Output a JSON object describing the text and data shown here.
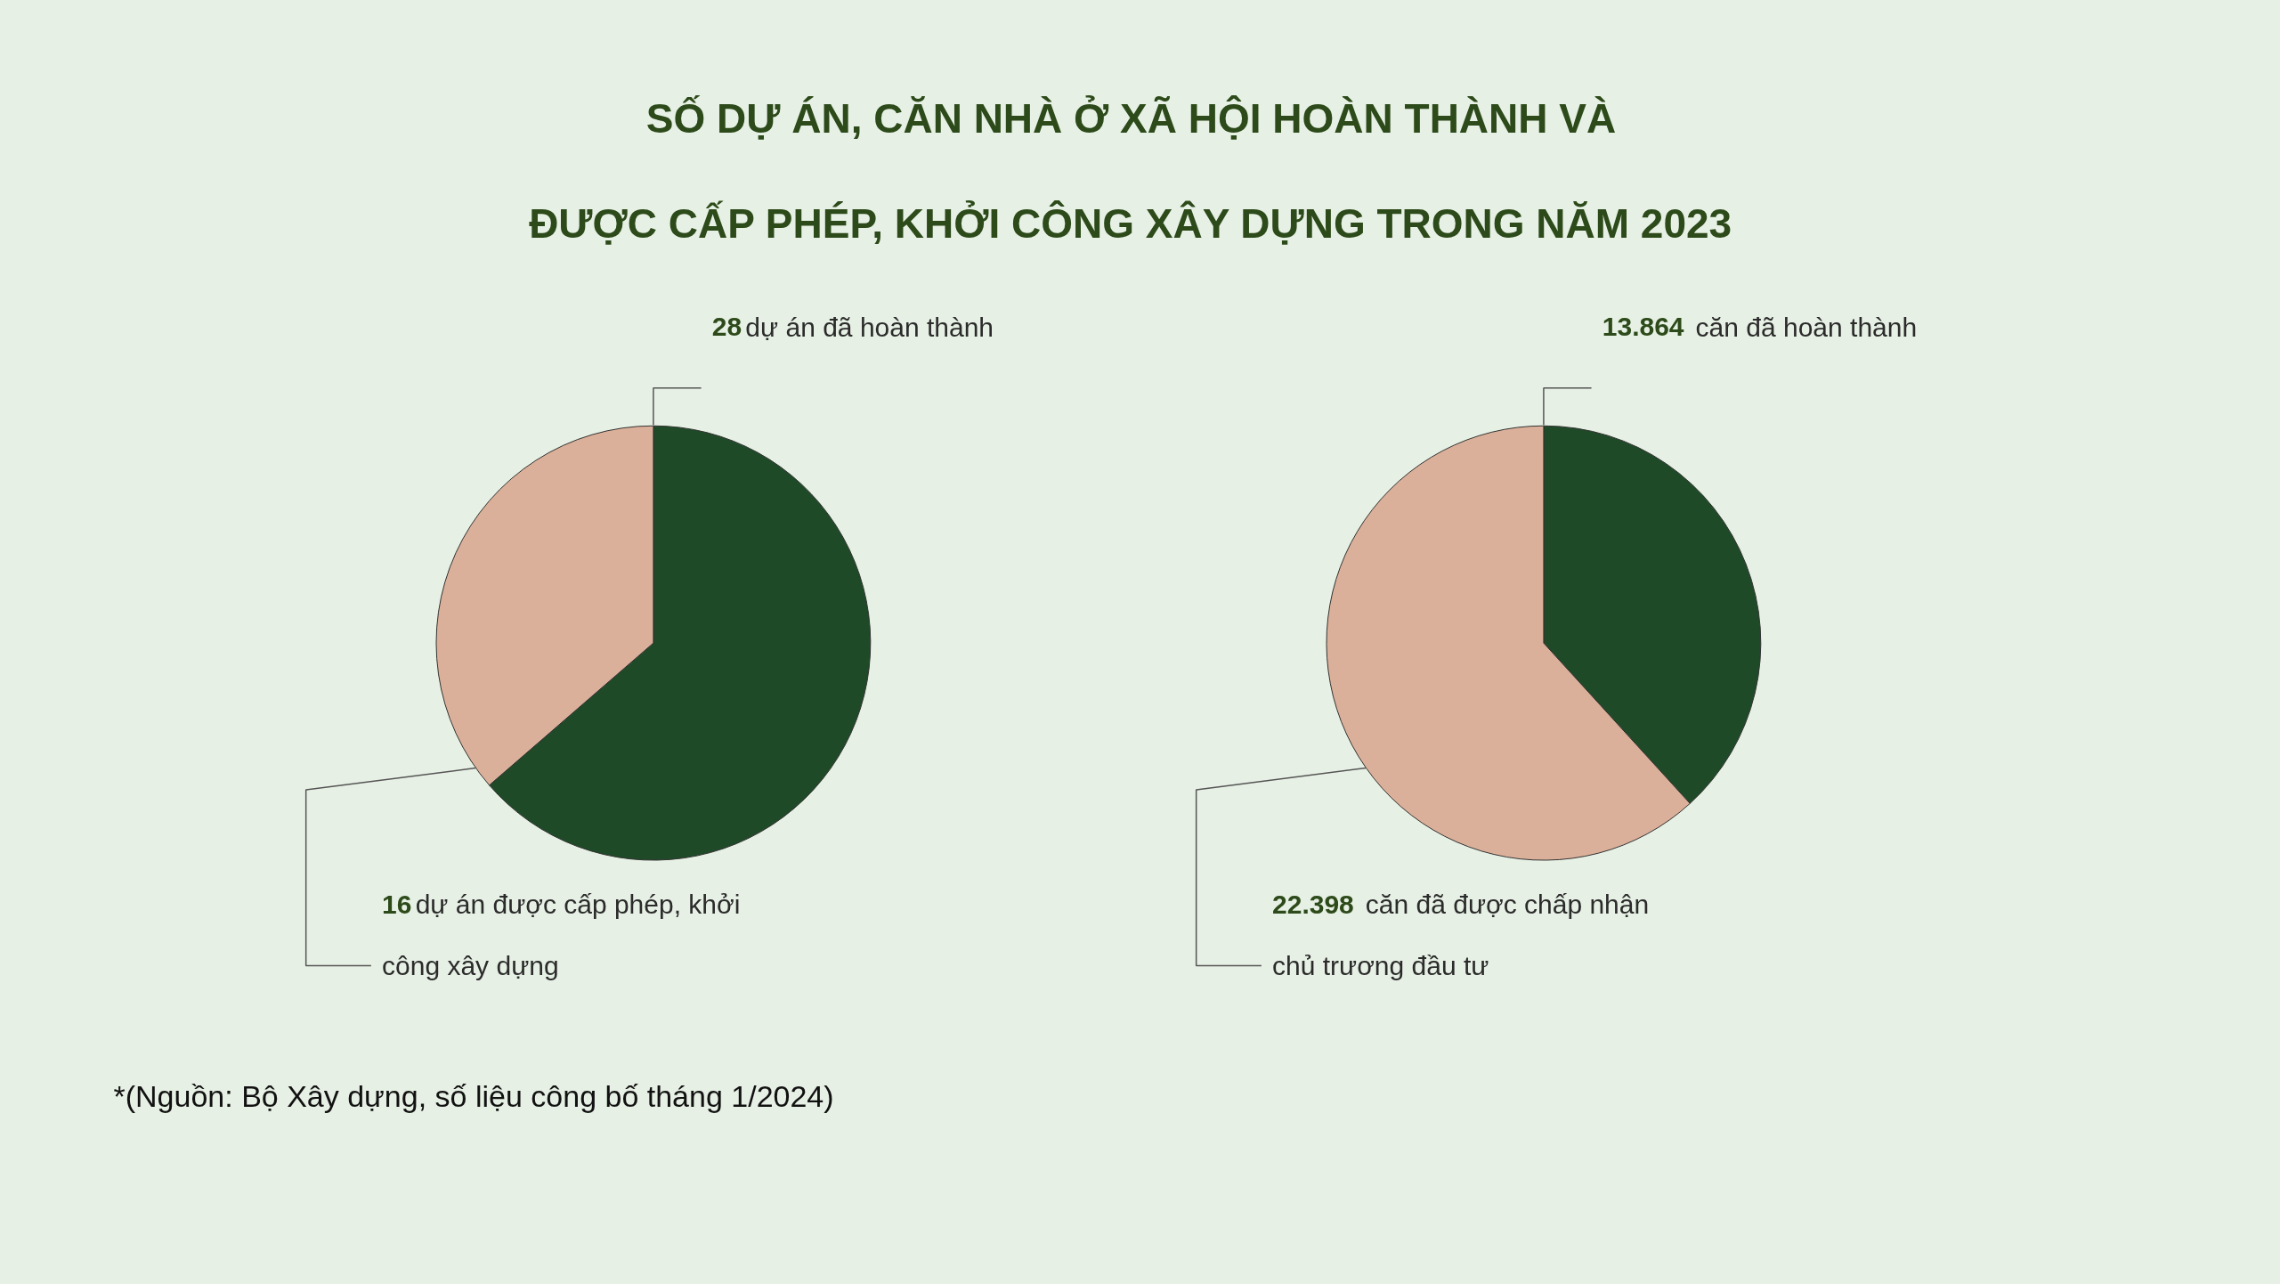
{
  "chart_data": [
    {
      "type": "pie",
      "title": "SỐ DỰ ÁN, CĂN NHÀ Ở XÃ HỘI HOÀN THÀNH VÀ\nĐƯỢC CẤP PHÉP, KHỞI CÔNG XÂY DỰNG TRONG NĂM 2023",
      "categories": [
        "dự án đã hoàn thành",
        "dự án được cấp phép, khởi công xây dựng"
      ],
      "values": [
        28,
        16
      ],
      "value_labels": [
        "28",
        "16"
      ],
      "colors": [
        "#1f4a27",
        "#dbb09a"
      ],
      "annotations": [
        "*(Nguồn: Bộ Xây dựng, số liệu công bố tháng 1/2024)"
      ]
    },
    {
      "type": "pie",
      "categories": [
        "căn đã hoàn thành",
        "căn đã được chấp nhận chủ trương đầu tư"
      ],
      "values": [
        13864,
        22398
      ],
      "value_labels": [
        "13.864",
        "22.398"
      ],
      "colors": [
        "#1f4a27",
        "#dbb09a"
      ]
    }
  ]
}
